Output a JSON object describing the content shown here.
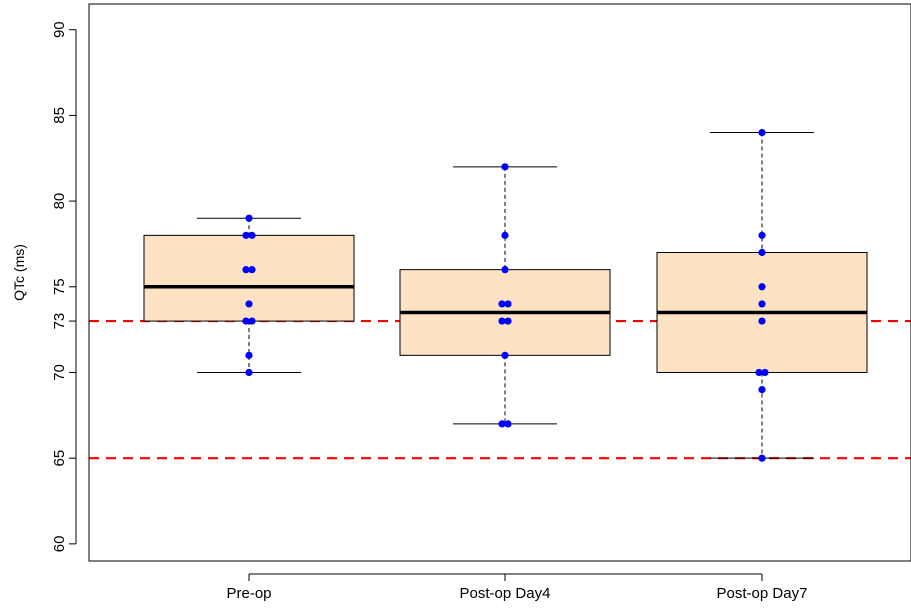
{
  "chart_data": {
    "type": "boxplot",
    "title": "",
    "xlabel": "",
    "ylabel": "QTc (ms)",
    "ylim": [
      59,
      91.5
    ],
    "categories": [
      "Pre-op",
      "Post-op Day4",
      "Post-op Day7"
    ],
    "y_ticks": [
      "60",
      "65",
      "70",
      "75",
      "80",
      "85",
      "90"
    ],
    "y_tick_values": [
      60,
      65,
      70,
      75,
      80,
      85,
      90
    ],
    "extra_ticks": [
      {
        "value": 73,
        "label": "73"
      }
    ],
    "reference_lines": [
      {
        "value": 73,
        "style": "dashed",
        "color": "#ff0000"
      },
      {
        "value": 65,
        "style": "dashed",
        "color": "#ff0000"
      }
    ],
    "boxes": [
      {
        "category": "Pre-op",
        "whisker_low": 70,
        "q1": 73,
        "median": 75,
        "q3": 78,
        "whisker_high": 79
      },
      {
        "category": "Post-op Day4",
        "whisker_low": 67,
        "q1": 71,
        "median": 73.5,
        "q3": 76,
        "whisker_high": 82
      },
      {
        "category": "Post-op Day7",
        "whisker_low": 65,
        "q1": 70,
        "median": 73.5,
        "q3": 77,
        "whisker_high": 84
      }
    ],
    "points": [
      [
        79,
        78,
        78,
        76,
        76,
        74,
        73,
        73,
        71,
        70
      ],
      [
        82,
        78,
        76,
        74,
        74,
        73,
        73,
        71,
        67,
        67
      ],
      [
        84,
        78,
        77,
        75,
        74,
        73,
        70,
        70,
        69,
        65
      ]
    ],
    "colors": {
      "box_fill": "#fde3c4",
      "box_stroke": "#000000",
      "median": "#000000",
      "points": "#0000ff",
      "reference": "#ff0000"
    },
    "grid": false,
    "legend": "none"
  }
}
